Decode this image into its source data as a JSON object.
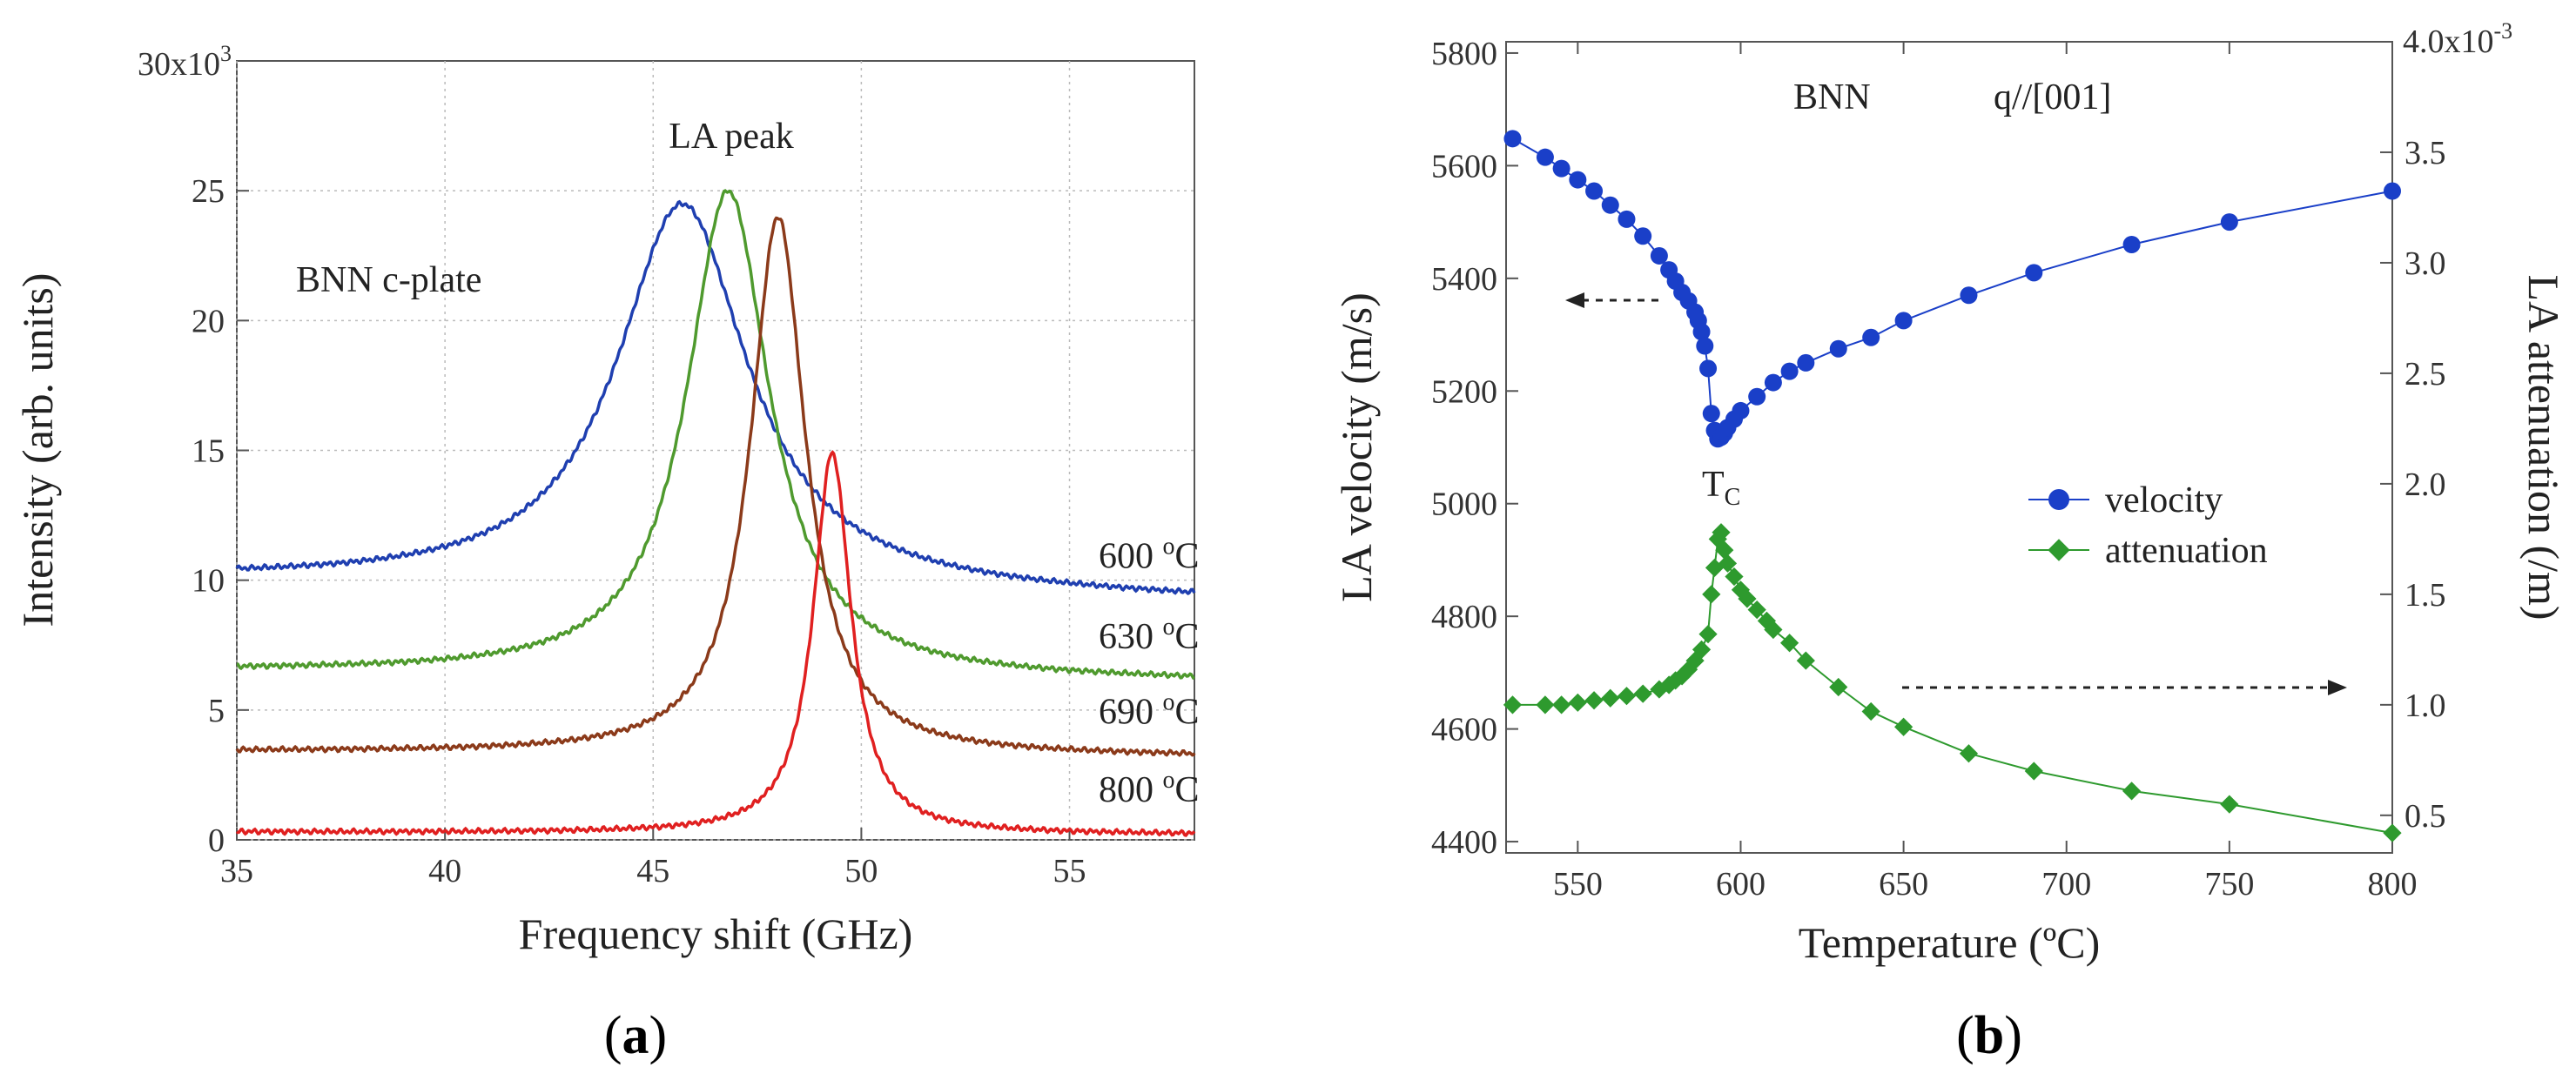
{
  "chart_data": [
    {
      "type": "line",
      "panel_label": "a",
      "title": "",
      "xlabel": "Frequency shift (GHz)",
      "ylabel": "Intensity (arb. units)",
      "xlim": [
        35,
        58
      ],
      "ylim": [
        0,
        30
      ],
      "x_ticks": [
        "35",
        "40",
        "45",
        "50",
        "55"
      ],
      "y_ticks": [
        "0",
        "5",
        "10",
        "15",
        "20",
        "25"
      ],
      "y_top_label": "30x10",
      "y_top_exponent": "3",
      "sample_label": "BNN  c-plate",
      "peak_label": "LA peak",
      "series": [
        {
          "name": "600 °C",
          "temp": "600",
          "unit": "°C",
          "color": "#1f3fb0",
          "baseline": 10.0,
          "baseline_end": 9.2,
          "peak_x": 45.7,
          "peak_y": 24.5,
          "width": 1.9
        },
        {
          "name": "630 °C",
          "temp": "630",
          "unit": "°C",
          "color": "#4f9a2e",
          "baseline": 6.5,
          "baseline_end": 6.1,
          "peak_x": 46.8,
          "peak_y": 25.0,
          "width": 1.2
        },
        {
          "name": "690 °C",
          "temp": "690",
          "unit": "°C",
          "color": "#8b3a1a",
          "baseline": 3.4,
          "baseline_end": 3.2,
          "peak_x": 48.0,
          "peak_y": 24.0,
          "width": 0.8
        },
        {
          "name": "800 °C",
          "temp": "800",
          "unit": "°C",
          "color": "#e02020",
          "baseline": 0.3,
          "baseline_end": 0.2,
          "peak_x": 49.3,
          "peak_y": 14.9,
          "width": 0.55
        }
      ]
    },
    {
      "type": "scatter",
      "panel_label": "b",
      "title": "",
      "sample_label": "BNN",
      "direction_label": "q//[001]",
      "tc_label": "T",
      "tc_sub": "C",
      "xlabel": "Temperature (ºC)",
      "ylabel_left": "LA velocity (m/s)",
      "ylabel_right": "LA attenuation (/m)",
      "xlim": [
        528,
        800
      ],
      "ylim_left": [
        4380,
        5820
      ],
      "ylim_right": [
        0.33,
        4.0
      ],
      "x_ticks": [
        "550",
        "600",
        "650",
        "700",
        "750",
        "800"
      ],
      "y_left_ticks": [
        "4400",
        "4600",
        "4800",
        "5000",
        "5200",
        "5400",
        "5600",
        "5800"
      ],
      "y_right_ticks": [
        "0.5",
        "1.0",
        "1.5",
        "2.0",
        "2.5",
        "3.0",
        "3.5"
      ],
      "y_right_top_label": "4.0x10",
      "y_right_top_exponent": "-3",
      "series": [
        {
          "name": "velocity",
          "color": "#1a3fc8",
          "x": [
            530,
            540,
            545,
            550,
            555,
            560,
            565,
            570,
            575,
            578,
            580,
            582,
            584,
            586,
            587,
            588,
            589,
            590,
            591,
            592,
            593,
            594,
            595,
            596,
            598,
            600,
            605,
            610,
            615,
            620,
            630,
            640,
            650,
            670,
            690,
            720,
            750,
            800
          ],
          "y": [
            5648,
            5615,
            5595,
            5575,
            5555,
            5530,
            5505,
            5475,
            5440,
            5415,
            5395,
            5375,
            5360,
            5340,
            5325,
            5305,
            5280,
            5240,
            5160,
            5130,
            5115,
            5118,
            5125,
            5135,
            5150,
            5165,
            5190,
            5215,
            5235,
            5250,
            5275,
            5295,
            5325,
            5370,
            5410,
            5460,
            5500,
            5555
          ]
        },
        {
          "name": "attenuation",
          "color": "#2e9a2e",
          "x": [
            530,
            540,
            545,
            550,
            555,
            560,
            565,
            570,
            575,
            578,
            580,
            582,
            584,
            586,
            588,
            590,
            591,
            592,
            593,
            594,
            595,
            596,
            598,
            600,
            602,
            605,
            608,
            610,
            615,
            620,
            630,
            640,
            650,
            670,
            690,
            720,
            750,
            800
          ],
          "y": [
            1.0,
            1.0,
            1.0,
            1.01,
            1.02,
            1.03,
            1.04,
            1.05,
            1.07,
            1.09,
            1.11,
            1.13,
            1.16,
            1.2,
            1.25,
            1.32,
            1.5,
            1.62,
            1.75,
            1.78,
            1.7,
            1.64,
            1.58,
            1.52,
            1.48,
            1.43,
            1.38,
            1.34,
            1.28,
            1.2,
            1.08,
            0.97,
            0.9,
            0.78,
            0.7,
            0.61,
            0.55,
            0.42
          ]
        }
      ]
    }
  ]
}
